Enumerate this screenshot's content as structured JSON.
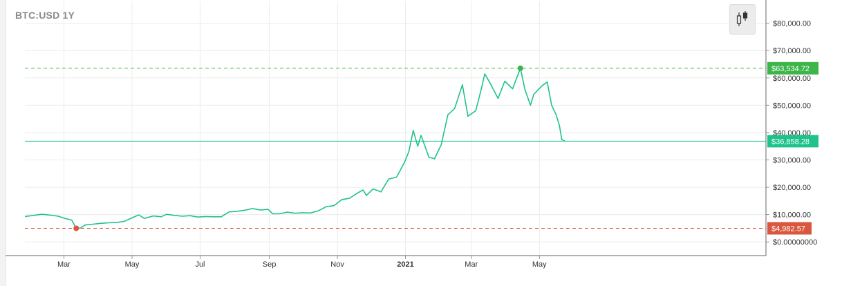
{
  "chart_data": {
    "type": "line",
    "title": "BTC:USD 1Y",
    "xlabel": "",
    "ylabel": "",
    "ylim": [
      -5000,
      88000
    ],
    "grid": true,
    "y_ticks": [
      0,
      10000,
      20000,
      30000,
      40000,
      50000,
      60000,
      70000,
      80000
    ],
    "y_tick_labels": [
      "$0.00000000",
      "$10,000.00",
      "$20,000.00",
      "$30,000.00",
      "$40,000.00",
      "$50,000.00",
      "$60,000.00",
      "$70,000.00",
      "$80,000.00"
    ],
    "x_ticks": [
      {
        "label": "Mar",
        "date": "2020-03-01",
        "bold": false
      },
      {
        "label": "May",
        "date": "2020-05-01",
        "bold": false
      },
      {
        "label": "Jul",
        "date": "2020-07-01",
        "bold": false
      },
      {
        "label": "Sep",
        "date": "2020-09-01",
        "bold": false
      },
      {
        "label": "Nov",
        "date": "2020-11-01",
        "bold": false
      },
      {
        "label": "2021",
        "date": "2021-01-01",
        "bold": true
      },
      {
        "label": "Mar",
        "date": "2021-03-01",
        "bold": false
      },
      {
        "label": "May",
        "date": "2021-05-01",
        "bold": false
      }
    ],
    "xlim": [
      "2020-01-26",
      "2021-11-20"
    ],
    "series": [
      {
        "color": "#1ec28b",
        "points": [
          [
            "2020-01-26",
            9300
          ],
          [
            "2020-02-01",
            9600
          ],
          [
            "2020-02-10",
            10100
          ],
          [
            "2020-02-18",
            9800
          ],
          [
            "2020-02-25",
            9400
          ],
          [
            "2020-03-01",
            8700
          ],
          [
            "2020-03-08",
            8000
          ],
          [
            "2020-03-12",
            4983
          ],
          [
            "2020-03-16",
            5100
          ],
          [
            "2020-03-20",
            6200
          ],
          [
            "2020-03-27",
            6500
          ],
          [
            "2020-04-03",
            6800
          ],
          [
            "2020-04-10",
            7000
          ],
          [
            "2020-04-17",
            7100
          ],
          [
            "2020-04-24",
            7500
          ],
          [
            "2020-05-01",
            8800
          ],
          [
            "2020-05-07",
            9900
          ],
          [
            "2020-05-12",
            8600
          ],
          [
            "2020-05-20",
            9500
          ],
          [
            "2020-05-27",
            9200
          ],
          [
            "2020-06-01",
            10100
          ],
          [
            "2020-06-08",
            9700
          ],
          [
            "2020-06-15",
            9400
          ],
          [
            "2020-06-22",
            9600
          ],
          [
            "2020-06-29",
            9100
          ],
          [
            "2020-07-06",
            9300
          ],
          [
            "2020-07-13",
            9200
          ],
          [
            "2020-07-20",
            9200
          ],
          [
            "2020-07-27",
            11000
          ],
          [
            "2020-08-03",
            11200
          ],
          [
            "2020-08-10",
            11600
          ],
          [
            "2020-08-17",
            12200
          ],
          [
            "2020-08-24",
            11700
          ],
          [
            "2020-08-31",
            11900
          ],
          [
            "2020-09-04",
            10300
          ],
          [
            "2020-09-10",
            10300
          ],
          [
            "2020-09-17",
            10900
          ],
          [
            "2020-09-24",
            10500
          ],
          [
            "2020-10-01",
            10700
          ],
          [
            "2020-10-08",
            10600
          ],
          [
            "2020-10-15",
            11400
          ],
          [
            "2020-10-22",
            12900
          ],
          [
            "2020-10-29",
            13300
          ],
          [
            "2020-11-05",
            15500
          ],
          [
            "2020-11-12",
            16000
          ],
          [
            "2020-11-19",
            17900
          ],
          [
            "2020-11-24",
            19000
          ],
          [
            "2020-11-27",
            17000
          ],
          [
            "2020-12-03",
            19400
          ],
          [
            "2020-12-10",
            18300
          ],
          [
            "2020-12-17",
            23000
          ],
          [
            "2020-12-24",
            23700
          ],
          [
            "2020-12-31",
            29000
          ],
          [
            "2021-01-04",
            33000
          ],
          [
            "2021-01-08",
            40800
          ],
          [
            "2021-01-12",
            35000
          ],
          [
            "2021-01-15",
            39000
          ],
          [
            "2021-01-22",
            31000
          ],
          [
            "2021-01-27",
            30400
          ],
          [
            "2021-02-02",
            35500
          ],
          [
            "2021-02-08",
            46500
          ],
          [
            "2021-02-14",
            48800
          ],
          [
            "2021-02-21",
            57500
          ],
          [
            "2021-02-26",
            46000
          ],
          [
            "2021-03-05",
            48000
          ],
          [
            "2021-03-10",
            56000
          ],
          [
            "2021-03-13",
            61500
          ],
          [
            "2021-03-18",
            58000
          ],
          [
            "2021-03-25",
            52500
          ],
          [
            "2021-03-31",
            58800
          ],
          [
            "2021-04-07",
            56000
          ],
          [
            "2021-04-14",
            63535
          ],
          [
            "2021-04-18",
            55800
          ],
          [
            "2021-04-23",
            50000
          ],
          [
            "2021-04-26",
            54000
          ],
          [
            "2021-05-03",
            57000
          ],
          [
            "2021-05-08",
            58500
          ],
          [
            "2021-05-12",
            50000
          ],
          [
            "2021-05-16",
            46500
          ],
          [
            "2021-05-19",
            42500
          ],
          [
            "2021-05-21",
            37500
          ],
          [
            "2021-05-24",
            36858
          ]
        ]
      }
    ],
    "annotations": {
      "high": {
        "value": 63534.72,
        "date": "2021-04-14",
        "label": "$63,534.72",
        "color": "#3cb54a"
      },
      "current": {
        "value": 36858.28,
        "label": "$36,858.28",
        "color": "#1ec28b"
      },
      "low": {
        "value": 4982.57,
        "date": "2020-03-12",
        "label": "$4,982.57",
        "color": "#d9573e"
      }
    }
  },
  "toolbar": {
    "chart_type_icon": "candlestick-icon"
  }
}
